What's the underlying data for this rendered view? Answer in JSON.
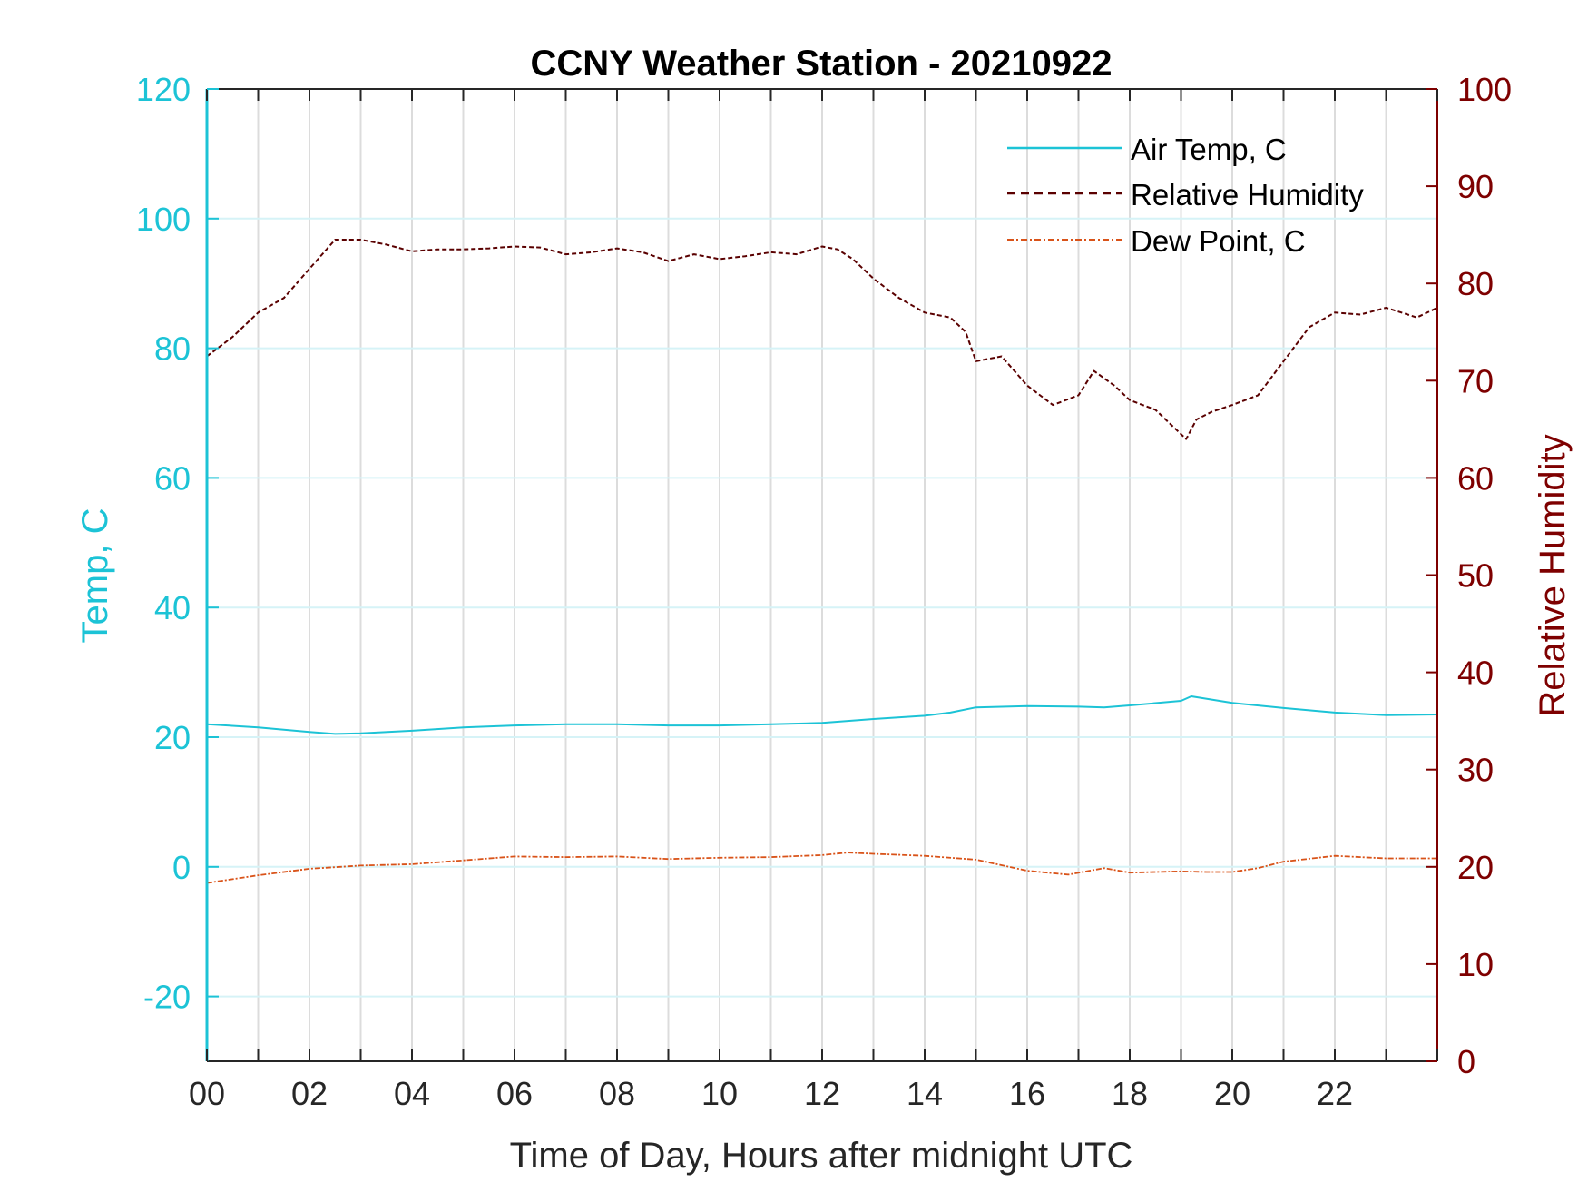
{
  "chart_data": {
    "type": "line",
    "title": "CCNY Weather Station - 20210922",
    "xlabel": "Time of Day, Hours after midnight UTC",
    "ylabel_left": "Temp, C",
    "ylabel_right": "Relative Humidity",
    "xlim": [
      0,
      24
    ],
    "ylim_left": [
      -30,
      120
    ],
    "ylim_right": [
      0,
      100
    ],
    "x_ticks": [
      0,
      2,
      4,
      6,
      8,
      10,
      12,
      14,
      16,
      18,
      20,
      22
    ],
    "x_tick_labels": [
      "00",
      "02",
      "04",
      "06",
      "08",
      "10",
      "12",
      "14",
      "16",
      "18",
      "20",
      "22"
    ],
    "y_left_ticks": [
      -20,
      0,
      20,
      40,
      60,
      80,
      100,
      120
    ],
    "y_left_tick_labels": [
      "-20",
      "0",
      "20",
      "40",
      "60",
      "80",
      "100",
      "120"
    ],
    "y_right_ticks": [
      0,
      10,
      20,
      30,
      40,
      50,
      60,
      70,
      80,
      90,
      100
    ],
    "y_right_tick_labels": [
      "0",
      "10",
      "20",
      "30",
      "40",
      "50",
      "60",
      "70",
      "80",
      "90",
      "100"
    ],
    "grid": true,
    "legend_position": "top-right",
    "colors": {
      "left_axis": "#1cc3d6",
      "right_axis": "#7e0000",
      "air_temp": "#1cc3d6",
      "humidity": "#5a0000",
      "dew_point": "#d95319"
    },
    "series": [
      {
        "name": "Air Temp, C",
        "axis": "left",
        "style": "solid",
        "x": [
          0,
          1,
          2,
          2.5,
          3,
          4,
          5,
          6,
          7,
          8,
          9,
          10,
          11,
          12,
          13,
          14,
          14.5,
          15,
          16,
          17,
          17.5,
          18,
          19,
          19.2,
          20,
          21,
          22,
          23,
          24
        ],
        "values": [
          22,
          21.5,
          20.8,
          20.5,
          20.6,
          21,
          21.5,
          21.8,
          22,
          22,
          21.8,
          21.8,
          22,
          22.2,
          22.8,
          23.3,
          23.8,
          24.6,
          24.8,
          24.7,
          24.6,
          24.9,
          25.6,
          26.3,
          25.3,
          24.5,
          23.8,
          23.4,
          23.5
        ]
      },
      {
        "name": "Relative Humidity",
        "axis": "right",
        "style": "dashed",
        "x": [
          0,
          0.5,
          1,
          1.5,
          2,
          2.5,
          3,
          3.5,
          4,
          4.5,
          5,
          5.5,
          6,
          6.5,
          7,
          7.5,
          8,
          8.5,
          9,
          9.5,
          10,
          10.5,
          11,
          11.5,
          12,
          12.3,
          12.6,
          13,
          13.5,
          14,
          14.5,
          14.8,
          15,
          15.5,
          16,
          16.5,
          17,
          17.3,
          17.7,
          18,
          18.5,
          18.8,
          19.1,
          19.3,
          19.6,
          20,
          20.5,
          21,
          21.5,
          22,
          22.5,
          23,
          23.3,
          23.6,
          24
        ],
        "values": [
          72.5,
          74.5,
          77,
          78.5,
          81.5,
          84.5,
          84.5,
          84,
          83.3,
          83.5,
          83.5,
          83.6,
          83.8,
          83.7,
          83,
          83.2,
          83.6,
          83.2,
          82.3,
          83,
          82.5,
          82.8,
          83.2,
          83,
          83.8,
          83.5,
          82.5,
          80.5,
          78.5,
          77,
          76.5,
          75,
          72,
          72.5,
          69.5,
          67.5,
          68.5,
          71,
          69.5,
          68,
          67,
          65.5,
          64,
          66,
          66.8,
          67.5,
          68.5,
          72,
          75.5,
          77,
          76.8,
          77.5,
          77,
          76.5,
          77.5
        ]
      },
      {
        "name": "Dew Point, C",
        "axis": "left",
        "style": "dashdot",
        "x": [
          0,
          1,
          2,
          3,
          4,
          5,
          6,
          7,
          8,
          9,
          10,
          11,
          12,
          12.5,
          13,
          14,
          15,
          16,
          16.8,
          17.5,
          18,
          19,
          19.5,
          20,
          20.5,
          21,
          22,
          23,
          24
        ],
        "values": [
          -2.5,
          -1.3,
          -0.3,
          0.2,
          0.4,
          1,
          1.6,
          1.5,
          1.6,
          1.2,
          1.4,
          1.5,
          1.8,
          2.2,
          2,
          1.7,
          1.1,
          -0.6,
          -1.2,
          -0.2,
          -0.9,
          -0.7,
          -0.8,
          -0.8,
          -0.2,
          0.8,
          1.7,
          1.3,
          1.3
        ]
      }
    ]
  }
}
